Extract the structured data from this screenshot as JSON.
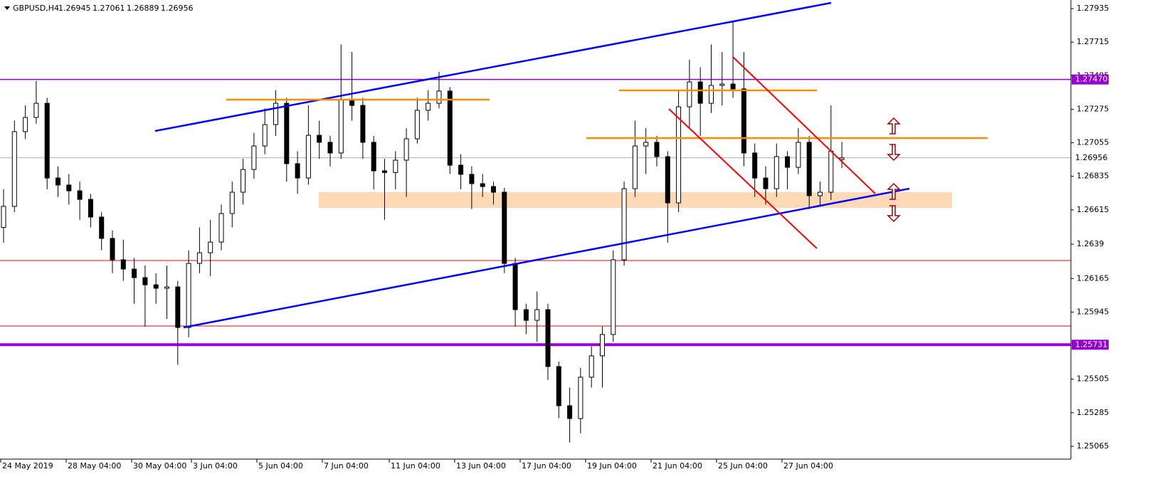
{
  "chart_data": {
    "type": "candlestick",
    "title": "GBPUSD,H4",
    "header_values": [
      "1.26945",
      "1.27061",
      "1.26889",
      "1.26956"
    ],
    "x_labels": [
      "24 May 2019",
      "28 May 04:00",
      "30 May 04:00",
      "3 Jun 04:00",
      "5 Jun 04:00",
      "7 Jun 04:00",
      "11 Jun 04:00",
      "13 Jun 04:00",
      "17 Jun 04:00",
      "19 Jun 04:00",
      "21 Jun 04:00",
      "25 Jun 04:00",
      "27 Jun 04:00"
    ],
    "ylim": [
      1.25065,
      1.27935
    ],
    "yticks": [
      1.27935,
      1.27715,
      1.27495,
      1.27275,
      1.27055,
      1.26835,
      1.26615,
      1.2639,
      1.26165,
      1.25945,
      1.25505,
      1.25285,
      1.25065
    ],
    "levels": [
      {
        "value": 1.2747,
        "label": "1.27470",
        "color": "#9400d3"
      },
      {
        "value": 1.25731,
        "label": "1.25731",
        "color": "#9400d3"
      }
    ],
    "current": {
      "value": 1.26956,
      "label": "1.26956"
    },
    "up_color": "#ffffff",
    "down_color": "#000000",
    "open": [
      1.265,
      1.26638,
      1.27128,
      1.27221,
      1.27314,
      1.26824,
      1.26778,
      1.2674,
      1.26684,
      1.26568,
      1.26428,
      1.26288,
      1.26227,
      1.26171,
      1.26124,
      1.26101,
      1.2611,
      1.25844,
      1.26264,
      1.26334,
      1.26404,
      1.26591,
      1.26731,
      1.2688,
      1.27034,
      1.27174,
      1.27314,
      1.26918,
      1.26824,
      1.27104,
      1.27058,
      1.26988,
      1.27338,
      1.273,
      1.27058,
      1.26871,
      1.2686,
      1.26941,
      1.27081,
      1.27268,
      1.27314,
      1.27394,
      1.26908,
      1.26848,
      1.26787,
      1.26768,
      1.26731,
      1.26264,
      1.25961,
      1.25891,
      1.25961,
      1.25588,
      1.25331,
      1.25247,
      1.25518,
      1.25658,
      1.25798,
      1.26288,
      1.26754,
      1.27034,
      1.27058,
      1.26964,
      1.26661,
      1.27291,
      1.27454,
      1.27314,
      1.27431,
      1.2744,
      1.27408,
      1.26988,
      1.26824,
      1.26754,
      1.26964,
      1.26894,
      1.27058,
      1.26708,
      1.26731,
      1.26945
    ],
    "high": [
      1.2675,
      1.272,
      1.273,
      1.2746,
      1.2735,
      1.269,
      1.2685,
      1.268,
      1.2672,
      1.266,
      1.2648,
      1.2642,
      1.263,
      1.2625,
      1.262,
      1.2625,
      1.2615,
      1.2635,
      1.265,
      1.2655,
      1.2665,
      1.268,
      1.2695,
      1.2712,
      1.2728,
      1.274,
      1.2735,
      1.27,
      1.273,
      1.272,
      1.271,
      1.277,
      1.2765,
      1.2735,
      1.271,
      1.2695,
      1.27,
      1.2715,
      1.2735,
      1.274,
      1.2752,
      1.2742,
      1.2698,
      1.269,
      1.2685,
      1.268,
      1.2676,
      1.263,
      1.26,
      1.2608,
      1.26,
      1.2562,
      1.2545,
      1.2558,
      1.2572,
      1.2585,
      1.2635,
      1.268,
      1.272,
      1.2715,
      1.271,
      1.27,
      1.274,
      1.276,
      1.2755,
      1.277,
      1.2765,
      1.2785,
      1.2765,
      1.2705,
      1.269,
      1.2705,
      1.27,
      1.2715,
      1.271,
      1.268,
      1.273,
      1.27061
    ],
    "low": [
      1.264,
      1.266,
      1.2708,
      1.2718,
      1.2675,
      1.267,
      1.2665,
      1.2655,
      1.265,
      1.2635,
      1.262,
      1.2615,
      1.26,
      1.2585,
      1.26,
      1.259,
      1.256,
      1.2578,
      1.262,
      1.2618,
      1.2635,
      1.265,
      1.2665,
      1.2682,
      1.2698,
      1.271,
      1.268,
      1.2672,
      1.2678,
      1.2695,
      1.269,
      1.2695,
      1.272,
      1.2695,
      1.2675,
      1.2655,
      1.2675,
      1.267,
      1.2705,
      1.272,
      1.2728,
      1.2685,
      1.2675,
      1.2662,
      1.267,
      1.2665,
      1.262,
      1.2585,
      1.258,
      1.2575,
      1.255,
      1.2525,
      1.2509,
      1.2515,
      1.2545,
      1.2545,
      1.2575,
      1.2625,
      1.267,
      1.2685,
      1.269,
      1.264,
      1.266,
      1.2715,
      1.271,
      1.2725,
      1.273,
      1.2735,
      1.269,
      1.267,
      1.2665,
      1.267,
      1.2675,
      1.2685,
      1.2662,
      1.2664,
      1.2668,
      1.26889
    ],
    "close": [
      1.26638,
      1.27128,
      1.27221,
      1.27314,
      1.26824,
      1.26778,
      1.2674,
      1.26684,
      1.26568,
      1.26428,
      1.26288,
      1.26227,
      1.26171,
      1.26124,
      1.26101,
      1.2611,
      1.25844,
      1.26264,
      1.26334,
      1.26404,
      1.26591,
      1.26731,
      1.2688,
      1.27034,
      1.27174,
      1.27314,
      1.26918,
      1.26824,
      1.27104,
      1.27058,
      1.26988,
      1.27338,
      1.273,
      1.27058,
      1.26871,
      1.2686,
      1.26941,
      1.27081,
      1.27268,
      1.27314,
      1.27394,
      1.26908,
      1.26848,
      1.26787,
      1.26768,
      1.26731,
      1.26264,
      1.25961,
      1.25891,
      1.25961,
      1.25588,
      1.25331,
      1.25247,
      1.25518,
      1.25658,
      1.25798,
      1.26288,
      1.26754,
      1.27034,
      1.27058,
      1.26964,
      1.26661,
      1.27291,
      1.27454,
      1.27314,
      1.27431,
      1.2744,
      1.27408,
      1.26988,
      1.26824,
      1.26754,
      1.26964,
      1.26894,
      1.27058,
      1.26708,
      1.26731,
      1.27,
      1.26956
    ]
  }
}
